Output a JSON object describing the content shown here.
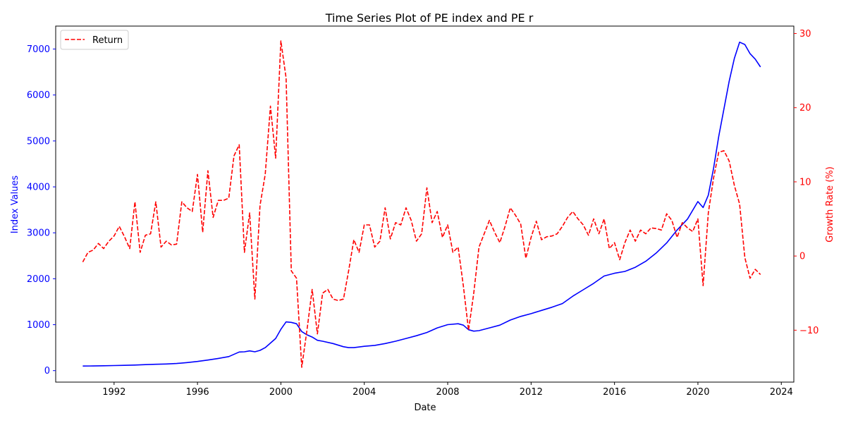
{
  "chart_data": {
    "type": "line",
    "title": "Time Series Plot of PE index and PE r",
    "xlabel": "Date",
    "ylabel_left": "Index Values",
    "ylabel_right": "Growth Rate (%)",
    "xlim": [
      1989.2,
      2024.6
    ],
    "ylim_left": [
      -250,
      7500
    ],
    "ylim_right": [
      -17.0,
      31.0
    ],
    "x_ticks": [
      1992,
      1996,
      2000,
      2004,
      2008,
      2012,
      2016,
      2020,
      2024
    ],
    "y_ticks_left": [
      0,
      1000,
      2000,
      3000,
      4000,
      5000,
      6000,
      7000
    ],
    "y_ticks_right": [
      -10,
      0,
      10,
      20,
      30
    ],
    "grid": false,
    "legend": {
      "placement": "upper-left",
      "entries": [
        {
          "label": "Return",
          "series": "return"
        }
      ]
    },
    "colors": {
      "index": "#0000ff",
      "return": "#ff0000",
      "left_axis": "#0000ff",
      "right_axis": "#ff0000"
    },
    "series": [
      {
        "key": "index",
        "axis": "left",
        "style": "solid",
        "x": [
          1990.5,
          1991.0,
          1991.5,
          1992.0,
          1992.5,
          1993.0,
          1993.5,
          1994.0,
          1994.5,
          1995.0,
          1995.5,
          1996.0,
          1996.5,
          1997.0,
          1997.5,
          1998.0,
          1998.25,
          1998.5,
          1998.75,
          1999.0,
          1999.25,
          1999.5,
          1999.75,
          2000.0,
          2000.25,
          2000.5,
          2000.75,
          2001.0,
          2001.25,
          2001.5,
          2001.75,
          2002.0,
          2002.5,
          2003.0,
          2003.25,
          2003.5,
          2004.0,
          2004.5,
          2005.0,
          2005.5,
          2006.0,
          2006.5,
          2007.0,
          2007.5,
          2008.0,
          2008.5,
          2008.75,
          2009.0,
          2009.25,
          2009.5,
          2010.0,
          2010.5,
          2011.0,
          2011.5,
          2012.0,
          2012.5,
          2013.0,
          2013.5,
          2014.0,
          2014.5,
          2015.0,
          2015.5,
          2016.0,
          2016.5,
          2017.0,
          2017.5,
          2018.0,
          2018.5,
          2019.0,
          2019.5,
          2020.0,
          2020.25,
          2020.5,
          2020.75,
          2021.0,
          2021.25,
          2021.5,
          2021.75,
          2022.0,
          2022.25,
          2022.5,
          2022.75,
          2023.0
        ],
        "y": [
          100,
          102,
          106,
          110,
          115,
          122,
          130,
          138,
          145,
          155,
          175,
          200,
          230,
          265,
          305,
          405,
          410,
          430,
          410,
          440,
          500,
          600,
          700,
          900,
          1060,
          1050,
          1020,
          850,
          780,
          730,
          660,
          640,
          590,
          520,
          500,
          500,
          530,
          550,
          590,
          640,
          700,
          760,
          830,
          930,
          1000,
          1020,
          990,
          890,
          860,
          870,
          930,
          990,
          1100,
          1180,
          1240,
          1310,
          1380,
          1460,
          1620,
          1760,
          1900,
          2060,
          2120,
          2160,
          2250,
          2380,
          2560,
          2780,
          3060,
          3300,
          3680,
          3550,
          3820,
          4400,
          5100,
          5700,
          6300,
          6800,
          7150,
          7100,
          6900,
          6780,
          6610
        ]
      },
      {
        "key": "return",
        "name": "Return",
        "axis": "right",
        "style": "dashed",
        "x": [
          1990.5,
          1990.75,
          1991.0,
          1991.25,
          1991.5,
          1991.75,
          1992.0,
          1992.25,
          1992.5,
          1992.75,
          1993.0,
          1993.25,
          1993.5,
          1993.75,
          1994.0,
          1994.25,
          1994.5,
          1994.75,
          1995.0,
          1995.25,
          1995.5,
          1995.75,
          1996.0,
          1996.25,
          1996.5,
          1996.75,
          1997.0,
          1997.25,
          1997.5,
          1997.75,
          1998.0,
          1998.25,
          1998.5,
          1998.75,
          1999.0,
          1999.25,
          1999.5,
          1999.75,
          2000.0,
          2000.25,
          2000.5,
          2000.75,
          2001.0,
          2001.25,
          2001.5,
          2001.75,
          2002.0,
          2002.25,
          2002.5,
          2002.75,
          2003.0,
          2003.25,
          2003.5,
          2003.75,
          2004.0,
          2004.25,
          2004.5,
          2004.75,
          2005.0,
          2005.25,
          2005.5,
          2005.75,
          2006.0,
          2006.25,
          2006.5,
          2006.75,
          2007.0,
          2007.25,
          2007.5,
          2007.75,
          2008.0,
          2008.25,
          2008.5,
          2008.75,
          2009.0,
          2009.25,
          2009.5,
          2009.75,
          2010.0,
          2010.25,
          2010.5,
          2010.75,
          2011.0,
          2011.25,
          2011.5,
          2011.75,
          2012.0,
          2012.25,
          2012.5,
          2012.75,
          2013.0,
          2013.25,
          2013.5,
          2013.75,
          2014.0,
          2014.25,
          2014.5,
          2014.75,
          2015.0,
          2015.25,
          2015.5,
          2015.75,
          2016.0,
          2016.25,
          2016.5,
          2016.75,
          2017.0,
          2017.25,
          2017.5,
          2017.75,
          2018.0,
          2018.25,
          2018.5,
          2018.75,
          2019.0,
          2019.25,
          2019.5,
          2019.75,
          2020.0,
          2020.25,
          2020.5,
          2020.75,
          2021.0,
          2021.25,
          2021.5,
          2021.75,
          2022.0,
          2022.25,
          2022.5,
          2022.75,
          2023.0
        ],
        "y": [
          -0.8,
          0.5,
          0.8,
          1.7,
          1.0,
          2.0,
          2.7,
          4.0,
          2.6,
          1.0,
          7.3,
          0.5,
          2.8,
          3.0,
          7.3,
          1.2,
          2.0,
          1.5,
          1.6,
          7.3,
          6.5,
          6.0,
          11.0,
          3.2,
          11.5,
          5.2,
          7.5,
          7.5,
          7.8,
          13.5,
          15.0,
          0.5,
          5.8,
          -5.8,
          6.8,
          11.0,
          20.2,
          13.2,
          29.0,
          24.0,
          -2.0,
          -3.0,
          -15.0,
          -10.0,
          -4.5,
          -10.5,
          -5.0,
          -4.5,
          -5.8,
          -6.0,
          -5.8,
          -2.0,
          2.2,
          0.5,
          4.2,
          4.2,
          1.2,
          2.0,
          6.5,
          2.3,
          4.5,
          4.2,
          6.5,
          4.8,
          2.0,
          3.0,
          9.2,
          4.5,
          6.0,
          2.5,
          4.2,
          0.5,
          1.2,
          -4.0,
          -10.0,
          -5.0,
          1.2,
          3.0,
          4.8,
          3.2,
          1.8,
          4.0,
          6.5,
          5.5,
          4.3,
          -0.3,
          2.5,
          4.7,
          2.2,
          2.6,
          2.7,
          3.0,
          4.0,
          5.2,
          6.0,
          5.0,
          4.2,
          2.8,
          5.0,
          3.0,
          5.0,
          1.0,
          1.8,
          -0.5,
          1.8,
          3.5,
          2.0,
          3.5,
          3.0,
          3.8,
          3.7,
          3.5,
          5.7,
          4.8,
          2.5,
          4.5,
          3.8,
          3.3,
          5.0,
          -4.0,
          5.8,
          10.5,
          14.0,
          14.2,
          12.8,
          9.5,
          7.0,
          -0.2,
          -3.0,
          -1.8,
          -2.5
        ]
      }
    ]
  }
}
